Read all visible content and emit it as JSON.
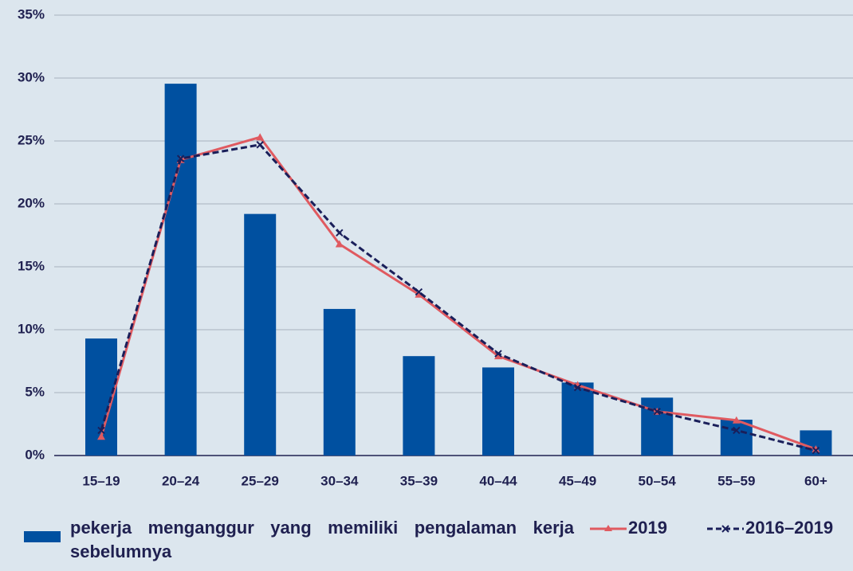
{
  "chart_data": {
    "type": "bar",
    "categories": [
      "15–19",
      "20–24",
      "25–29",
      "30–34",
      "35–39",
      "40–44",
      "45–49",
      "50–54",
      "55–59",
      "60+"
    ],
    "series": [
      {
        "name": "pekerja menganggur yang memiliki pengalaman kerja sebelumnya",
        "type": "bar",
        "color": "#0050a0",
        "values": [
          9.3,
          29.55,
          19.2,
          11.65,
          7.9,
          7.0,
          5.8,
          4.6,
          2.85,
          2.0
        ]
      },
      {
        "name": "2019",
        "type": "line",
        "color": "#e05a60",
        "marker": "triangle",
        "values": [
          1.5,
          23.5,
          25.3,
          16.8,
          12.8,
          7.9,
          5.6,
          3.5,
          2.8,
          0.5
        ]
      },
      {
        "name": "2016–2019",
        "type": "line",
        "color": "#1a1f5a",
        "marker": "x",
        "dashed": true,
        "values": [
          2.0,
          23.6,
          24.7,
          17.7,
          13.0,
          8.1,
          5.4,
          3.5,
          2.0,
          0.4
        ]
      }
    ],
    "ylim": [
      0,
      35
    ],
    "yticks": [
      {
        "value": 0,
        "label": "0%"
      },
      {
        "value": 5,
        "label": "5%"
      },
      {
        "value": 10,
        "label": "10%"
      },
      {
        "value": 15,
        "label": "15%"
      },
      {
        "value": 20,
        "label": "20%"
      },
      {
        "value": 25,
        "label": "25%"
      },
      {
        "value": 30,
        "label": "30%"
      },
      {
        "value": 35,
        "label": "35%"
      }
    ],
    "grid": true,
    "legend": "bottom"
  }
}
